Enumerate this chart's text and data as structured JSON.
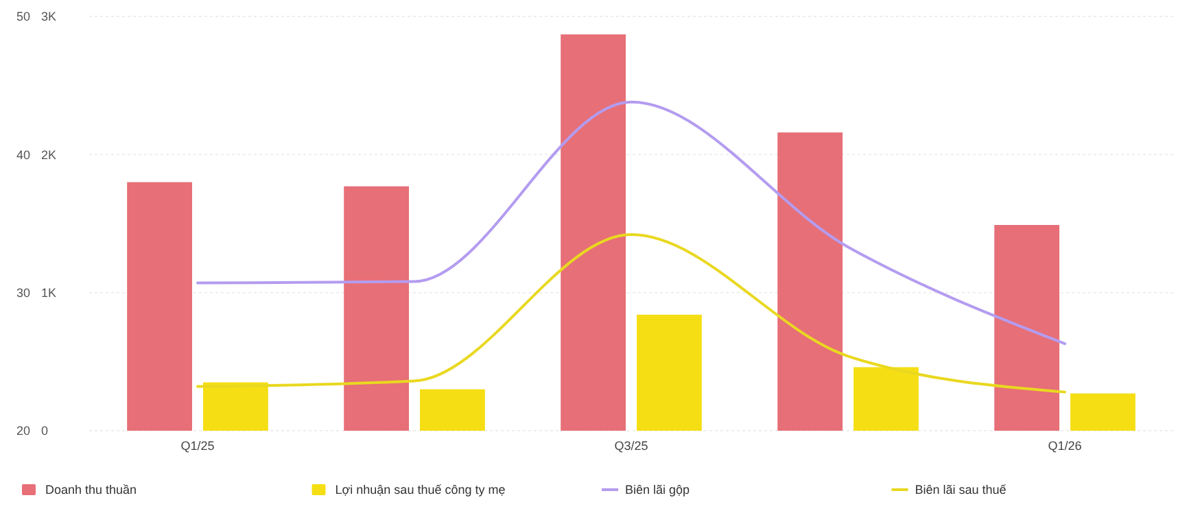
{
  "chart_data": {
    "type": "bar",
    "categories": [
      "Q1/25",
      null,
      "Q3/25",
      null,
      "Q1/26"
    ],
    "series": [
      {
        "name": "Doanh thu thuần",
        "axis": "y2",
        "color": "#e76f77",
        "values": [
          1800,
          1770,
          2870,
          2160,
          1490
        ]
      },
      {
        "name": "Lợi nhuận sau thuế công ty mẹ",
        "axis": "y2",
        "color": "#f5de14",
        "values": [
          350,
          300,
          840,
          460,
          270
        ]
      },
      {
        "name": "Biên lãi gộp",
        "type": "line",
        "color": "#b49cf0",
        "values": [
          30.7,
          30.8,
          43.8,
          33.3,
          26.3
        ]
      },
      {
        "name": "Biên lãi sau thuế",
        "type": "line",
        "color": "#e9d820",
        "values": [
          23.2,
          23.6,
          34.2,
          25.4,
          22.8
        ]
      }
    ],
    "ylim": [
      20,
      50
    ],
    "yticks": [
      20,
      30,
      40,
      50
    ],
    "y2lim": [
      0,
      3000
    ],
    "y2ticks": [
      {
        "value": 0,
        "label": "0"
      },
      {
        "value": 1000,
        "label": "1K"
      },
      {
        "value": 2000,
        "label": "2K"
      },
      {
        "value": 3000,
        "label": "3K"
      }
    ],
    "grid": "y",
    "legend": "bottom"
  }
}
